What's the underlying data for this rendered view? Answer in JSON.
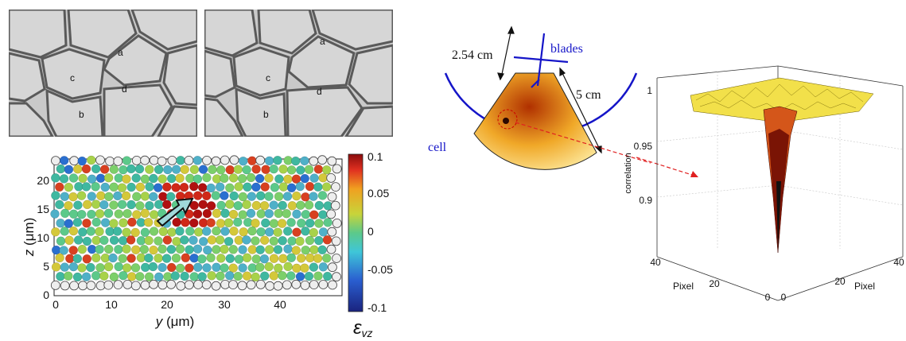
{
  "foam_panels": {
    "left_labels": [
      "a",
      "b",
      "c",
      "d"
    ],
    "right_labels": [
      "a",
      "b",
      "c",
      "d"
    ]
  },
  "emulsion_plot": {
    "xlabel_var": "y",
    "xlabel_unit": "(μm)",
    "ylabel_var": "z",
    "ylabel_unit": "(μm)",
    "x_ticks": [
      "0",
      "10",
      "20",
      "30",
      "40"
    ],
    "y_ticks": [
      "0",
      "5",
      "10",
      "15",
      "20"
    ],
    "colorbar_ticks": [
      "0.1",
      "0.05",
      "0",
      "-0.05",
      "-0.1"
    ],
    "colorbar_label": "ε",
    "colorbar_label_sub": "vz",
    "colors": {
      "low": "#1f2fa0",
      "mid": "#4fc8b0",
      "high": "#a01010"
    }
  },
  "cell_diagram": {
    "dimension_left": "2.54 cm",
    "blades_label": "blades",
    "dimension_right": "5 cm",
    "cell_label": "cell",
    "accent_color": "#1515c8"
  },
  "surface_plot": {
    "zlabel": "correlation",
    "z_ticks": [
      "1",
      "0.95",
      "0.9"
    ],
    "left_axis_ticks": [
      "40",
      "20",
      "0"
    ],
    "left_axis_label": "Pixel",
    "right_axis_ticks": [
      "0",
      "20",
      "40"
    ],
    "right_axis_label": "Pixel"
  }
}
